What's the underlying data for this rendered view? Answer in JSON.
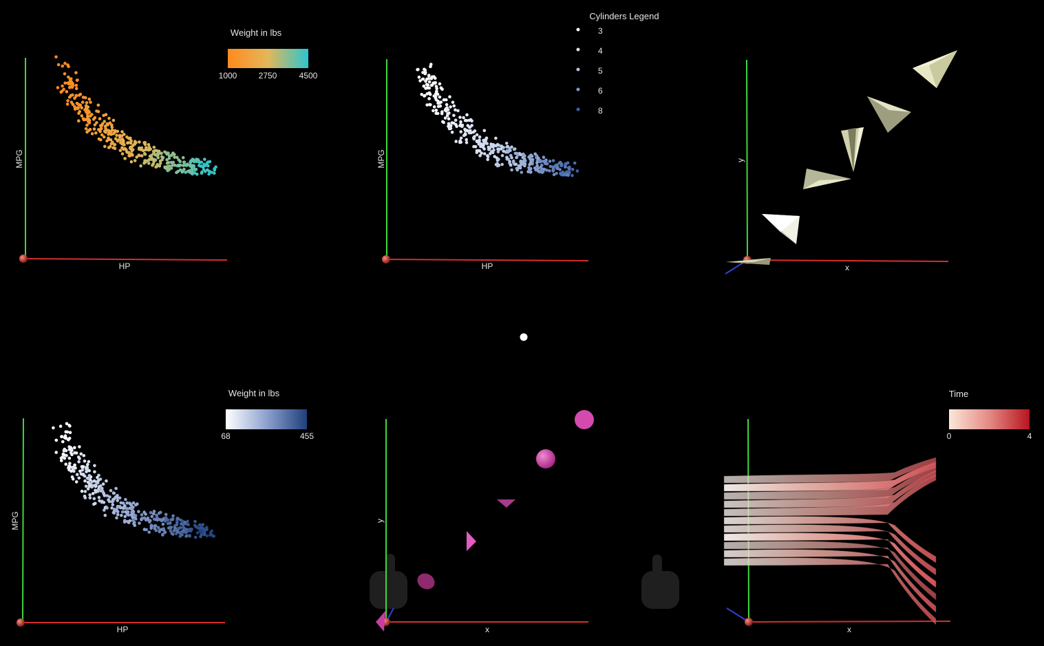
{
  "panels": {
    "p1": {
      "x_label": "HP",
      "y_label": "MPG",
      "colorbar_title": "Weight in lbs",
      "colorbar_ticks": [
        "1000",
        "2750",
        "4500"
      ],
      "colorbar_colors": [
        "#ff8a1e",
        "#e3b75a",
        "#2cc5cf"
      ]
    },
    "p2": {
      "x_label": "HP",
      "y_label": "MPG",
      "legend_title": "Cylinders Legend",
      "legend_items": [
        "3",
        "4",
        "5",
        "6",
        "8"
      ]
    },
    "p3": {
      "x_label": "x",
      "y_label": "y"
    },
    "p4": {
      "x_label": "HP",
      "y_label": "MPG",
      "colorbar_title": "Weight in lbs",
      "colorbar_ticks": [
        "68",
        "455"
      ],
      "colorbar_colors": [
        "#ffffff",
        "#8ea2cf",
        "#1f3f7c"
      ]
    },
    "p5": {
      "x_label": "x",
      "y_label": "y"
    },
    "p6": {
      "x_label": "x",
      "colorbar_title": "Time",
      "colorbar_ticks": [
        "0",
        "4"
      ],
      "colorbar_colors": [
        "#fbe7db",
        "#e48a84",
        "#b8141e"
      ]
    }
  },
  "colors": {
    "x_axis": "#d62f2f",
    "y_axis": "#3fd93a",
    "z_axis": "#3440d6",
    "origin": "#c0392b",
    "paper_plane": "#e9e9c9",
    "magenta_shape": "#d43fa8"
  },
  "icons": [
    "hand-cursor-icon",
    "hand-cursor-icon"
  ]
}
